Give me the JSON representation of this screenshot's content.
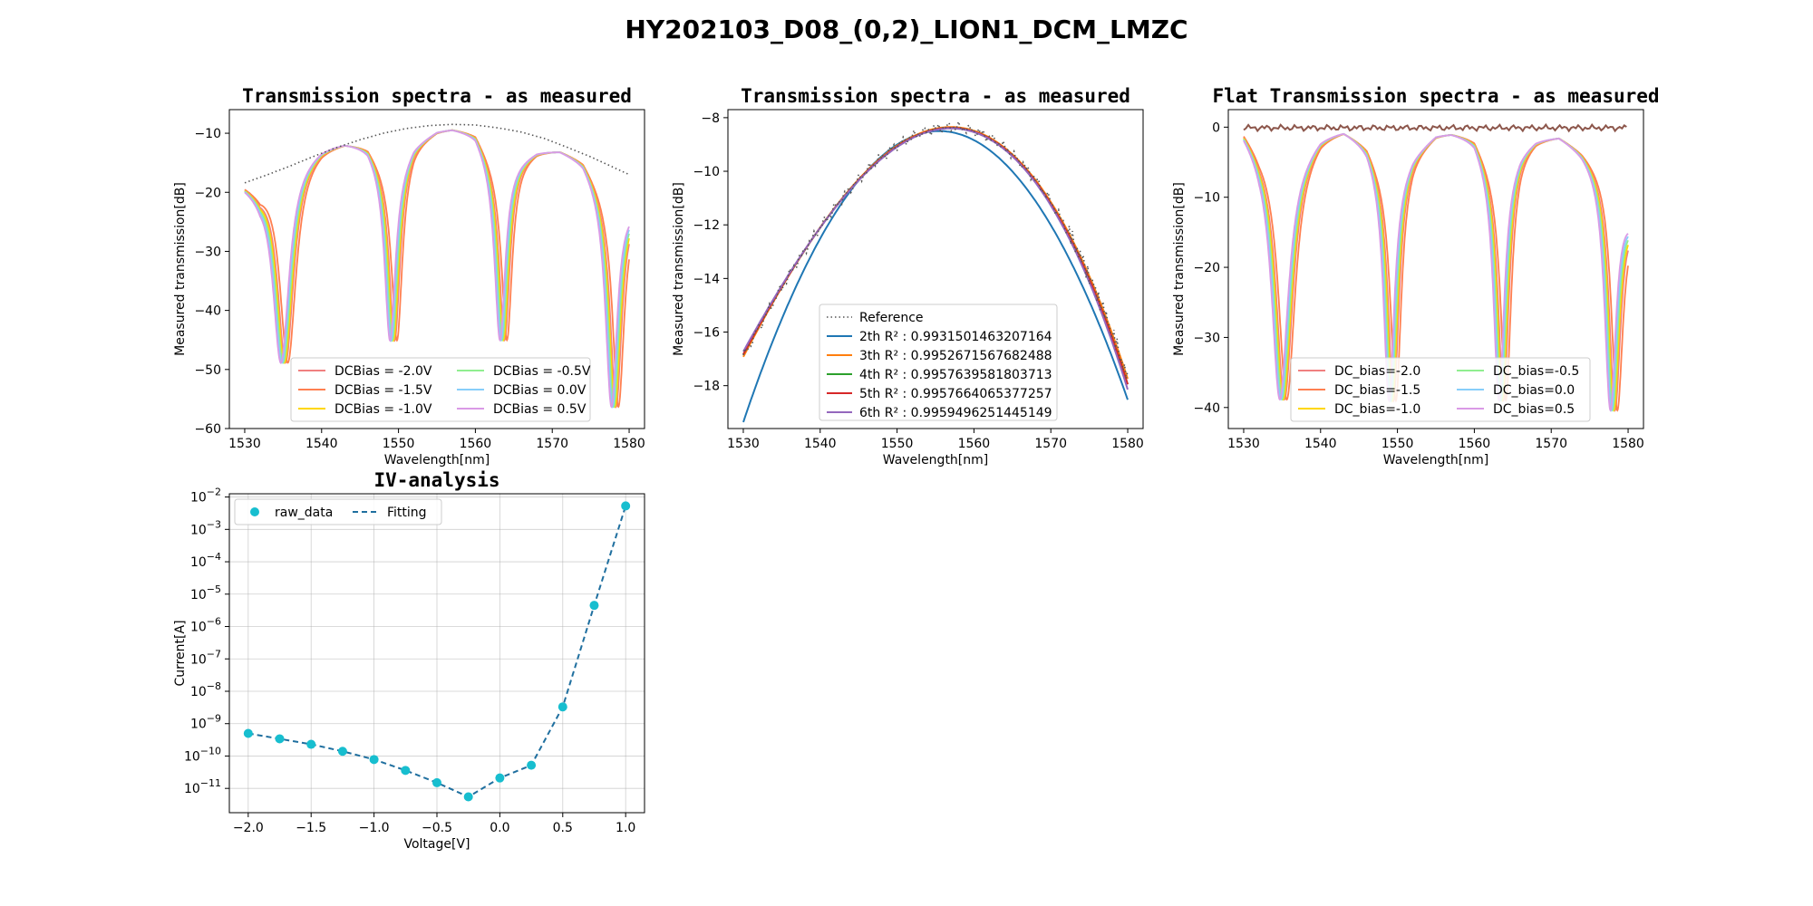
{
  "figure": {
    "suptitle": "HY202103_D08_(0,2)_LION1_DCM_LMZC"
  },
  "colors": {
    "red": "#f08080",
    "orange": "#ff7f50",
    "gold": "#ffd700",
    "green": "#90ee90",
    "skyblue": "#87cefa",
    "violet": "#da9ae6",
    "blue": "#1f77b4",
    "tab_orange": "#ff7f0e",
    "tab_green": "#2ca02c",
    "tab_red": "#d62728",
    "tab_purple": "#9467bd",
    "ref_gray": "#555555",
    "cyan": "#17becf",
    "fit_blue": "#1f6f9f",
    "flat_ref": "#8c564b"
  },
  "chart_data": [
    {
      "id": "p1",
      "type": "line",
      "title": "Transmission spectra - as measured",
      "xlabel": "Wavelength[nm]",
      "ylabel": "Measured transmission[dB]",
      "xlim": [
        1528,
        1582
      ],
      "ylim": [
        -60,
        -6
      ],
      "xticks": [
        1530,
        1540,
        1550,
        1560,
        1570,
        1580
      ],
      "yticks": [
        -10,
        -20,
        -30,
        -40,
        -50,
        -60
      ],
      "legend": "lower-right",
      "legend_columns": 2,
      "reference": {
        "x": [
          1530,
          1533,
          1536,
          1539,
          1542,
          1545,
          1548,
          1551,
          1554,
          1557,
          1560,
          1563,
          1566,
          1569,
          1572,
          1575,
          1578,
          1580
        ],
        "y": [
          -18.4,
          -17,
          -15.5,
          -13.9,
          -12.4,
          -11.1,
          -10,
          -9.2,
          -8.7,
          -8.5,
          -8.6,
          -9.1,
          -9.8,
          -10.9,
          -12.4,
          -14,
          -15.8,
          -17
        ]
      },
      "envelope": {
        "x": [
          1530,
          1532,
          1536,
          1540,
          1543,
          1546,
          1549,
          1552,
          1555,
          1557,
          1560,
          1563,
          1566,
          1568,
          1571,
          1574,
          1577,
          1580
        ],
        "y": [
          -18.5,
          -19.5,
          -14.8,
          -12,
          -11.2,
          -11.8,
          -17,
          -11.5,
          -9.3,
          -8.9,
          -9.6,
          -16,
          -14,
          -12.8,
          -12.6,
          -14.2,
          -20,
          -22
        ]
      },
      "dips": [
        {
          "center": 1535.3,
          "depth": -49.5,
          "width": 1.4
        },
        {
          "center": 1549.5,
          "depth": -45.5,
          "width": 0.9
        },
        {
          "center": 1563.8,
          "depth": -45.5,
          "width": 0.9
        },
        {
          "center": 1578.3,
          "depth": -57,
          "width": 1.0
        }
      ],
      "series": [
        {
          "name": "DCBias = -2.0V",
          "color_key": "red",
          "shift": 0
        },
        {
          "name": "DCBias = -1.5V",
          "color_key": "orange",
          "shift": 0.3
        },
        {
          "name": "DCBias = -1.0V",
          "color_key": "gold",
          "shift": -0.15
        },
        {
          "name": "DCBias = -0.5V",
          "color_key": "green",
          "shift": -0.3
        },
        {
          "name": "DCBias = 0.0V",
          "color_key": "skyblue",
          "shift": -0.45
        },
        {
          "name": "DCBias = 0.5V",
          "color_key": "violet",
          "shift": -0.6
        }
      ]
    },
    {
      "id": "p2",
      "type": "line",
      "title": "Transmission spectra - as measured",
      "xlabel": "Wavelength[nm]",
      "ylabel": "Measured transmission[dB]",
      "xlim": [
        1528,
        1582
      ],
      "ylim": [
        -19.6,
        -7.7
      ],
      "xticks": [
        1530,
        1540,
        1550,
        1560,
        1570,
        1580
      ],
      "yticks": [
        -8,
        -10,
        -12,
        -14,
        -16,
        -18
      ],
      "legend": "lower-center",
      "reference_name": "Reference",
      "fits": [
        {
          "name": "2th R² : 0.9931501463207164",
          "color_key": "blue",
          "peak_x": 1555.5,
          "peak_y": -8.5,
          "a": 0.0167,
          "c3": 0.0
        },
        {
          "name": "3th R² : 0.9952671567682488",
          "color_key": "tab_orange",
          "peak_x": 1557.0,
          "peak_y": -8.35,
          "a": 0.015,
          "c3": -0.00012
        },
        {
          "name": "4th R² : 0.9957639581803713",
          "color_key": "tab_green",
          "peak_x": 1557.0,
          "peak_y": -8.38,
          "a": 0.0151,
          "c3": -0.00013
        },
        {
          "name": "5th R² : 0.9957664065377257",
          "color_key": "tab_red",
          "peak_x": 1557.0,
          "peak_y": -8.38,
          "a": 0.0151,
          "c3": -0.00013
        },
        {
          "name": "6th R² : 0.9959496251445149",
          "color_key": "tab_purple",
          "peak_x": 1557.0,
          "peak_y": -8.4,
          "a": 0.0152,
          "c3": -0.00014
        }
      ]
    },
    {
      "id": "p3",
      "type": "line",
      "title": "Flat Transmission spectra - as measured",
      "xlabel": "Wavelength[nm]",
      "ylabel": "Measured transmission[dB]",
      "xlim": [
        1528,
        1582
      ],
      "ylim": [
        -43,
        2.5
      ],
      "xticks": [
        1530,
        1540,
        1550,
        1560,
        1570,
        1580
      ],
      "yticks": [
        0,
        -10,
        -20,
        -30,
        -40
      ],
      "legend": "lower-center",
      "legend_columns": 2,
      "envelope": {
        "x": [
          1530,
          1532,
          1536,
          1540,
          1543,
          1546,
          1549,
          1552,
          1555,
          1557,
          1560,
          1563,
          1566,
          1568,
          1571,
          1574,
          1577,
          1580
        ],
        "y": [
          0,
          -2.5,
          -5,
          -0.8,
          0,
          -2,
          -8,
          -3.5,
          -0.8,
          -0.5,
          -1.2,
          -7,
          -3,
          -1.5,
          -1,
          -3,
          -6,
          -12
        ]
      },
      "dips": [
        {
          "center": 1535.3,
          "depth": -39.5,
          "width": 1.4
        },
        {
          "center": 1549.5,
          "depth": -39.5,
          "width": 0.9
        },
        {
          "center": 1563.8,
          "depth": -39.5,
          "width": 0.9
        },
        {
          "center": 1578.3,
          "depth": -41,
          "width": 1.0
        }
      ],
      "series": [
        {
          "name": "DC_bias=-2.0",
          "color_key": "red",
          "shift": 0
        },
        {
          "name": "DC_bias=-1.5",
          "color_key": "orange",
          "shift": 0.3
        },
        {
          "name": "DC_bias=-1.0",
          "color_key": "gold",
          "shift": -0.15
        },
        {
          "name": "DC_bias=-0.5",
          "color_key": "green",
          "shift": -0.3
        },
        {
          "name": "DC_bias=0.0",
          "color_key": "skyblue",
          "shift": -0.45
        },
        {
          "name": "DC_bias=0.5",
          "color_key": "violet",
          "shift": -0.6
        }
      ]
    },
    {
      "id": "p4",
      "type": "scatter",
      "title": "IV-analysis",
      "xlabel": "Voltage[V]",
      "ylabel": "Current[A]",
      "xlim": [
        -2.15,
        1.15
      ],
      "ylim_log10": [
        -11.75,
        -1.9
      ],
      "y_scale": "log",
      "grid": true,
      "legend": "top-left",
      "xticks": [
        -2.0,
        -1.5,
        -1.0,
        -0.5,
        0.0,
        0.5,
        1.0
      ],
      "xtick_labels": [
        "−2.0",
        "−1.5",
        "−1.0",
        "−0.5",
        "0.0",
        "0.5",
        "1.0"
      ],
      "yticks_exp": [
        "-2",
        "-3",
        "-4",
        "-5",
        "-6",
        "-7",
        "-8",
        "-9",
        "-10",
        "-11"
      ],
      "ytick_base": "10",
      "raw_data_name": "raw_data",
      "fit_name": "Fitting",
      "x": [
        -2.0,
        -1.75,
        -1.5,
        -1.25,
        -1.0,
        -0.75,
        -0.5,
        -0.25,
        0.0,
        0.25,
        0.5,
        0.75,
        1.0
      ],
      "y": [
        5e-10,
        3.4e-10,
        2.3e-10,
        1.4e-10,
        7.8e-11,
        3.6e-11,
        1.5e-11,
        5.5e-12,
        2.1e-11,
        5.2e-11,
        3.3e-09,
        4.5e-06,
        0.0053
      ]
    }
  ]
}
